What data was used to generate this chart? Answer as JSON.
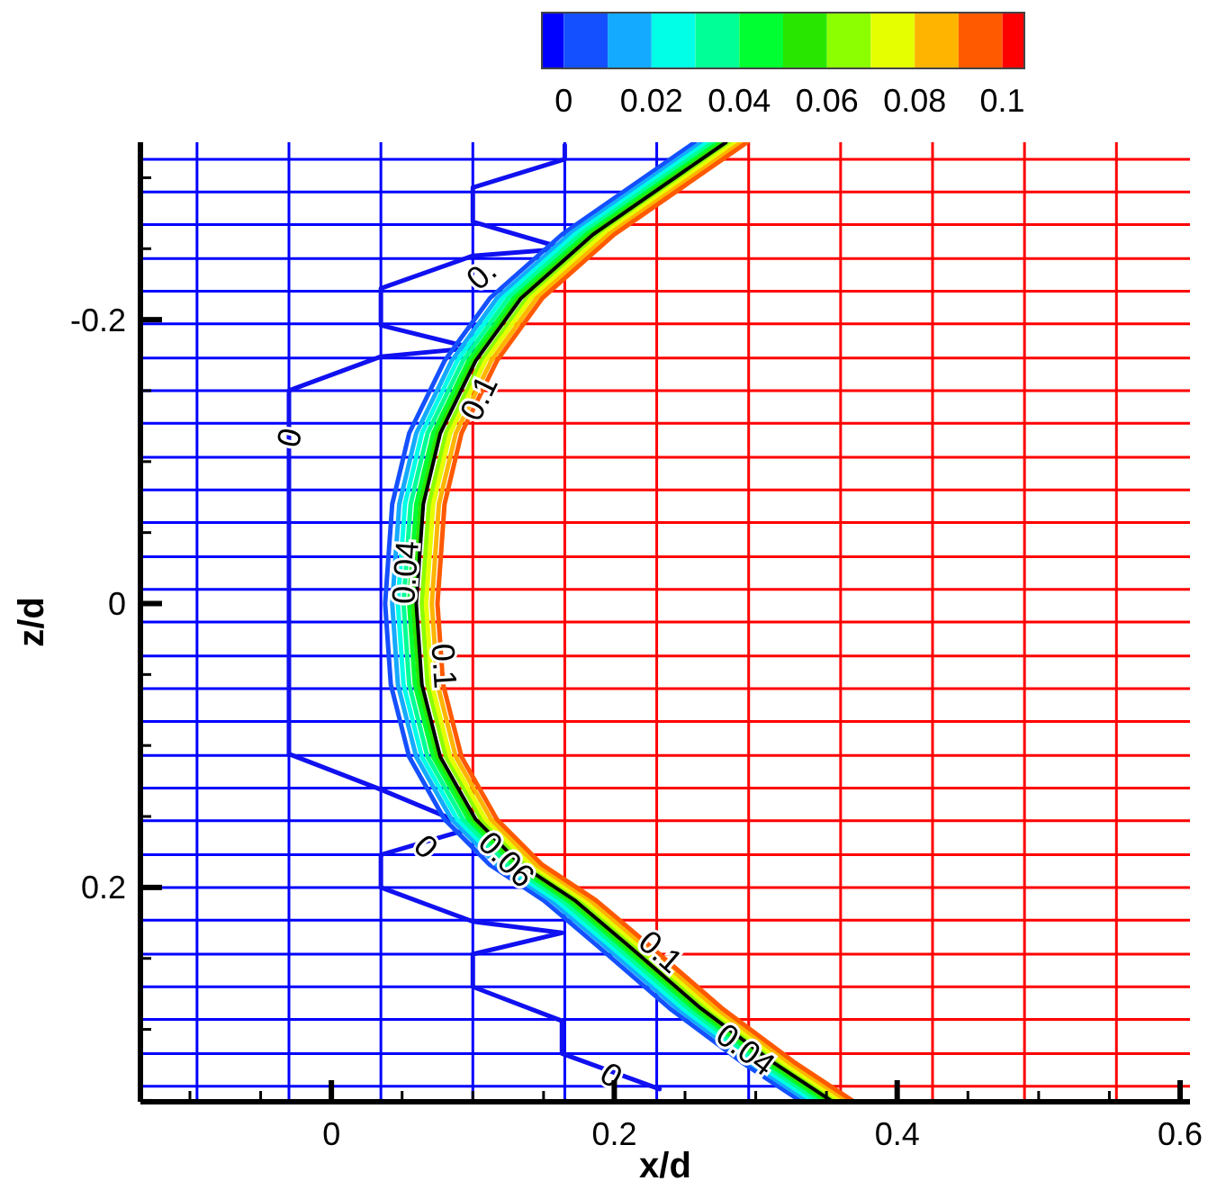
{
  "chart_data": {
    "type": "line",
    "xlabel": "x/d",
    "ylabel": "z/d",
    "xlim": [
      -0.135,
      0.607
    ],
    "ylim": [
      0.351,
      -0.325
    ],
    "xticks": [
      {
        "value": -0.1,
        "label": null
      },
      {
        "value": -0.05,
        "label": null
      },
      0,
      {
        "value": 0.05,
        "label": null
      },
      {
        "value": 0.1,
        "label": null
      },
      {
        "value": 0.15,
        "label": null
      },
      0.2,
      {
        "value": 0.25,
        "label": null
      },
      {
        "value": 0.3,
        "label": null
      },
      {
        "value": 0.35,
        "label": null
      },
      0.4,
      {
        "value": 0.45,
        "label": null
      },
      {
        "value": 0.5,
        "label": null
      },
      {
        "value": 0.55,
        "label": null
      },
      0.6
    ],
    "yticks": [
      {
        "value": -0.3,
        "label": null
      },
      {
        "value": -0.25,
        "label": null
      },
      -0.2,
      {
        "value": -0.15,
        "label": null
      },
      {
        "value": -0.1,
        "label": null
      },
      {
        "value": -0.05,
        "label": null
      },
      0,
      {
        "value": 0.05,
        "label": null
      },
      {
        "value": 0.1,
        "label": null
      },
      {
        "value": 0.15,
        "label": null
      },
      0.2,
      {
        "value": 0.25,
        "label": null
      },
      {
        "value": 0.3,
        "label": null
      },
      {
        "value": 0.35,
        "label": null
      }
    ],
    "clim": [
      -0.005,
      0.105
    ],
    "cticks": [
      0,
      0.02,
      0.04,
      0.06,
      0.08,
      0.1
    ],
    "colors": [
      "#0000ff",
      "#1450ff",
      "#14aaff",
      "#00ffe6",
      "#00ff96",
      "#00ff32",
      "#28e600",
      "#8cff00",
      "#e6ff00",
      "#ffb400",
      "#ff5a00",
      "#ff0000"
    ],
    "ref_lines": [
      {
        "axis": "x",
        "value": -0.095
      },
      {
        "axis": "x",
        "value": -0.03
      },
      {
        "axis": "x",
        "value": 0.035
      },
      {
        "axis": "x",
        "value": 0.1
      },
      {
        "axis": "x",
        "value": 0.165
      },
      {
        "axis": "x",
        "value": 0.23
      },
      {
        "axis": "x",
        "value": 0.295
      },
      {
        "axis": "x",
        "value": 0.36
      },
      {
        "axis": "x",
        "value": 0.425
      },
      {
        "axis": "x",
        "value": 0.49
      },
      {
        "axis": "x",
        "value": 0.555
      },
      {
        "axis": "y",
        "value": -0.313
      },
      {
        "axis": "y",
        "value": -0.29
      },
      {
        "axis": "y",
        "value": -0.267
      },
      {
        "axis": "y",
        "value": -0.243
      },
      {
        "axis": "y",
        "value": -0.22
      },
      {
        "axis": "y",
        "value": -0.197
      },
      {
        "axis": "y",
        "value": -0.173
      },
      {
        "axis": "y",
        "value": -0.15
      },
      {
        "axis": "y",
        "value": -0.127
      },
      {
        "axis": "y",
        "value": -0.103
      },
      {
        "axis": "y",
        "value": -0.08
      },
      {
        "axis": "y",
        "value": -0.057
      },
      {
        "axis": "y",
        "value": -0.033
      },
      {
        "axis": "y",
        "value": -0.01
      },
      {
        "axis": "y",
        "value": 0.013
      },
      {
        "axis": "y",
        "value": 0.037
      },
      {
        "axis": "y",
        "value": 0.06
      },
      {
        "axis": "y",
        "value": 0.083
      },
      {
        "axis": "y",
        "value": 0.107
      },
      {
        "axis": "y",
        "value": 0.13
      },
      {
        "axis": "y",
        "value": 0.153
      },
      {
        "axis": "y",
        "value": 0.177
      },
      {
        "axis": "y",
        "value": 0.2
      },
      {
        "axis": "y",
        "value": 0.223
      },
      {
        "axis": "y",
        "value": 0.247
      },
      {
        "axis": "y",
        "value": 0.27
      },
      {
        "axis": "y",
        "value": 0.293
      },
      {
        "axis": "y",
        "value": 0.317
      },
      {
        "axis": "y",
        "value": 0.34
      }
    ],
    "series": [
      {
        "color": "#1010f0",
        "x": [
          0.165,
          0.165,
          0.1,
          0.1,
          0.165,
          0.1,
          0.035,
          0.035,
          0.1,
          0.035,
          -0.03,
          -0.03,
          0.035,
          0.1,
          0.035,
          0.035,
          0.1,
          0.163,
          0.1,
          0.1,
          0.163,
          0.163,
          0.232
        ],
        "values": [
          -0.323,
          -0.313,
          -0.293,
          -0.269,
          -0.25,
          -0.245,
          -0.222,
          -0.196,
          -0.18,
          -0.174,
          -0.15,
          0.106,
          0.131,
          0.158,
          0.177,
          0.2,
          0.224,
          0.232,
          0.247,
          0.27,
          0.294,
          0.317,
          0.342
        ]
      },
      {
        "color": "#1450ff",
        "x": [
          0.257,
          0.163,
          0.112,
          0.08,
          0.055,
          0.043,
          0.038,
          0.042,
          0.055,
          0.08,
          0.112,
          0.15,
          0.188,
          0.239,
          0.29,
          0.331
        ],
        "values": [
          -0.325,
          -0.26,
          -0.215,
          -0.171,
          -0.12,
          -0.07,
          0,
          0.057,
          0.108,
          0.152,
          0.184,
          0.209,
          0.241,
          0.285,
          0.323,
          0.35
        ]
      },
      {
        "color": "#14aaff",
        "x": [
          0.262,
          0.168,
          0.117,
          0.085,
          0.06,
          0.048,
          0.043,
          0.047,
          0.06,
          0.085,
          0.117,
          0.155,
          0.193,
          0.244,
          0.295,
          0.336
        ],
        "values": [
          -0.325,
          -0.26,
          -0.215,
          -0.171,
          -0.12,
          -0.07,
          0,
          0.057,
          0.108,
          0.152,
          0.184,
          0.209,
          0.241,
          0.285,
          0.323,
          0.35
        ]
      },
      {
        "color": "#00ffe6",
        "x": [
          0.266,
          0.172,
          0.121,
          0.089,
          0.064,
          0.052,
          0.047,
          0.051,
          0.064,
          0.089,
          0.121,
          0.159,
          0.197,
          0.248,
          0.299,
          0.34
        ],
        "values": [
          -0.325,
          -0.26,
          -0.215,
          -0.171,
          -0.12,
          -0.07,
          0,
          0.057,
          0.108,
          0.152,
          0.184,
          0.209,
          0.241,
          0.285,
          0.323,
          0.35
        ]
      },
      {
        "color": "#00ff96",
        "x": [
          0.27,
          0.176,
          0.125,
          0.093,
          0.068,
          0.056,
          0.051,
          0.055,
          0.068,
          0.093,
          0.125,
          0.163,
          0.201,
          0.252,
          0.303,
          0.344
        ],
        "values": [
          -0.325,
          -0.26,
          -0.215,
          -0.171,
          -0.12,
          -0.07,
          0,
          0.057,
          0.108,
          0.152,
          0.184,
          0.209,
          0.241,
          0.285,
          0.323,
          0.35
        ]
      },
      {
        "color": "#00ff32",
        "x": [
          0.274,
          0.18,
          0.129,
          0.097,
          0.072,
          0.06,
          0.055,
          0.059,
          0.072,
          0.097,
          0.129,
          0.167,
          0.205,
          0.256,
          0.307,
          0.348
        ],
        "values": [
          -0.325,
          -0.26,
          -0.215,
          -0.171,
          -0.12,
          -0.07,
          0,
          0.057,
          0.108,
          0.152,
          0.184,
          0.209,
          0.241,
          0.285,
          0.323,
          0.35
        ]
      },
      {
        "color": "#28e600",
        "x": [
          0.277,
          0.183,
          0.132,
          0.1,
          0.075,
          0.063,
          0.058,
          0.062,
          0.075,
          0.1,
          0.132,
          0.17,
          0.208,
          0.259,
          0.31,
          0.351
        ],
        "values": [
          -0.325,
          -0.26,
          -0.215,
          -0.171,
          -0.12,
          -0.07,
          0,
          0.057,
          0.108,
          0.152,
          0.184,
          0.209,
          0.241,
          0.285,
          0.323,
          0.35
        ]
      },
      {
        "color": "#8cff00",
        "x": [
          0.283,
          0.189,
          0.138,
          0.106,
          0.081,
          0.069,
          0.064,
          0.068,
          0.081,
          0.106,
          0.138,
          0.176,
          0.214,
          0.265,
          0.316,
          0.357
        ],
        "values": [
          -0.325,
          -0.26,
          -0.215,
          -0.171,
          -0.12,
          -0.07,
          0,
          0.057,
          0.108,
          0.152,
          0.184,
          0.209,
          0.241,
          0.285,
          0.323,
          0.35
        ]
      },
      {
        "color": "#e6ff00",
        "x": [
          0.286,
          0.192,
          0.141,
          0.109,
          0.084,
          0.072,
          0.067,
          0.071,
          0.084,
          0.109,
          0.141,
          0.179,
          0.217,
          0.268,
          0.319,
          0.36
        ],
        "values": [
          -0.325,
          -0.26,
          -0.215,
          -0.171,
          -0.12,
          -0.07,
          0,
          0.057,
          0.108,
          0.152,
          0.184,
          0.209,
          0.241,
          0.285,
          0.323,
          0.35
        ]
      },
      {
        "color": "#ffb400",
        "x": [
          0.29,
          0.196,
          0.145,
          0.113,
          0.088,
          0.076,
          0.071,
          0.075,
          0.088,
          0.113,
          0.145,
          0.183,
          0.221,
          0.272,
          0.323,
          0.364
        ],
        "values": [
          -0.325,
          -0.26,
          -0.215,
          -0.171,
          -0.12,
          -0.07,
          0,
          0.057,
          0.108,
          0.152,
          0.184,
          0.209,
          0.241,
          0.285,
          0.323,
          0.35
        ]
      },
      {
        "color": "#ff5a00",
        "x": [
          0.294,
          0.2,
          0.149,
          0.117,
          0.092,
          0.08,
          0.075,
          0.079,
          0.092,
          0.117,
          0.149,
          0.187,
          0.225,
          0.276,
          0.327,
          0.368
        ],
        "values": [
          -0.325,
          -0.26,
          -0.215,
          -0.171,
          -0.12,
          -0.07,
          0,
          0.057,
          0.108,
          0.152,
          0.184,
          0.209,
          0.241,
          0.285,
          0.323,
          0.35
        ]
      },
      {
        "color": "#000000",
        "x": [
          0.279,
          0.185,
          0.134,
          0.102,
          0.077,
          0.065,
          0.06,
          0.064,
          0.077,
          0.102,
          0.134,
          0.172,
          0.21,
          0.261,
          0.312,
          0.353
        ],
        "values": [
          -0.325,
          -0.26,
          -0.215,
          -0.171,
          -0.12,
          -0.07,
          0,
          0.057,
          0.108,
          0.152,
          0.184,
          0.209,
          0.241,
          0.285,
          0.323,
          0.35
        ]
      }
    ],
    "annotations": [
      {
        "text": "0",
        "x": -0.03,
        "y": -0.117
      },
      {
        "text": "0.",
        "x": 0.106,
        "y": -0.232
      },
      {
        "text": "0.1",
        "x": 0.104,
        "y": -0.145
      },
      {
        "text": "0.04",
        "x": 0.052,
        "y": -0.022
      },
      {
        "text": "0.1",
        "x": 0.08,
        "y": 0.044
      },
      {
        "text": "0",
        "x": 0.067,
        "y": 0.171
      },
      {
        "text": "0.06",
        "x": 0.124,
        "y": 0.18
      },
      {
        "text": "0.1",
        "x": 0.233,
        "y": 0.245
      },
      {
        "text": "0.04",
        "x": 0.293,
        "y": 0.314
      },
      {
        "text": "0",
        "x": 0.198,
        "y": 0.332
      }
    ]
  }
}
